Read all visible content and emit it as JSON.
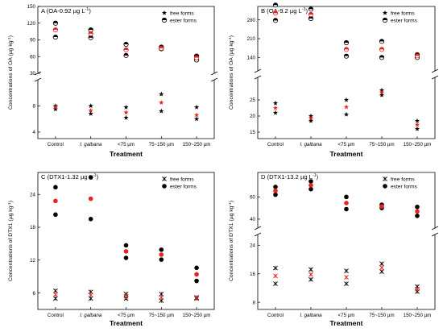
{
  "chart_data": [
    {
      "type": "scatter",
      "panel_letter": "A",
      "title": "A (OA-0.92 µg L⁻¹)",
      "ylabel": "Concentrations of OA (µg kg⁻¹)",
      "xlabel": "Treatment",
      "categories": [
        "Control",
        "I. galbana",
        "<75 µm",
        "75~150 µm",
        "150~250 µm"
      ],
      "broken_axis": true,
      "upper_segment": {
        "ylim": [
          30,
          150
        ],
        "ticks": [
          "30",
          "60",
          "90",
          "120",
          "150"
        ]
      },
      "lower_segment": {
        "ylim": [
          3,
          12
        ],
        "ticks": [
          "4",
          "8"
        ]
      },
      "legend": {
        "placement": "top-right",
        "entries": [
          "free forms",
          "ester forms"
        ]
      },
      "series": [
        {
          "name": "free forms",
          "marker": "star",
          "replicates": [
            [
              7.5,
              6.8,
              6.2,
              7.2,
              6.0
            ],
            [
              8.0,
              8.0,
              7.8,
              9.8,
              7.8
            ]
          ],
          "mean": [
            7.8,
            7.3,
            7.0,
            8.5,
            6.6
          ]
        },
        {
          "name": "ester forms",
          "marker": "half-circle",
          "replicates": [
            [
              95,
              94,
              62,
              74,
              54
            ],
            [
              120,
              108,
              82,
              77,
              61
            ]
          ],
          "mean": [
            108,
            101,
            72,
            75,
            58
          ]
        }
      ]
    },
    {
      "type": "scatter",
      "panel_letter": "B",
      "title": "B (OA-9.2 µg L⁻¹)",
      "ylabel": "Concentrations of OA (µg kg⁻¹)",
      "xlabel": "Treatment",
      "categories": [
        "Control",
        "I. galbana",
        "<75 µm",
        "75~150 µm",
        "150~250 µm"
      ],
      "broken_axis": true,
      "upper_segment": {
        "ylim": [
          90,
          330
        ],
        "ticks": [
          "140",
          "210",
          "280"
        ]
      },
      "lower_segment": {
        "ylim": [
          13,
          32
        ],
        "ticks": [
          "15",
          "20",
          "25"
        ]
      },
      "legend": {
        "placement": "top-right",
        "entries": [
          "free forms",
          "ester forms"
        ]
      },
      "series": [
        {
          "name": "free forms",
          "marker": "star",
          "replicates": [
            [
              21,
              18.5,
              20.5,
              26.5,
              16
            ],
            [
              24,
              20,
              25,
              28,
              18.5
            ]
          ],
          "mean": [
            22.5,
            19.3,
            22.8,
            27.3,
            17.3
          ]
        },
        {
          "name": "ester forms",
          "marker": "half-circle",
          "replicates": [
            [
              278,
              285,
              145,
              140,
              140
            ],
            [
              335,
              320,
              195,
              200,
              150
            ]
          ],
          "mean": [
            305,
            300,
            170,
            170,
            146
          ]
        }
      ]
    },
    {
      "type": "scatter",
      "panel_letter": "C",
      "title": "C (DTX1-1.32 µg L⁻¹)",
      "ylabel": "Concentrations of DTX1 (µg kg⁻¹)",
      "xlabel": "Treatment",
      "categories": [
        "Control",
        "I. galbana",
        "<75 µm",
        "75~150 µm",
        "150~250 µm"
      ],
      "broken_axis": false,
      "ylim": [
        3,
        28
      ],
      "yticks": [
        "6",
        "12",
        "18",
        "24"
      ],
      "legend": {
        "placement": "top-right",
        "entries": [
          "free forms",
          "ester forms"
        ]
      },
      "series": [
        {
          "name": "free forms",
          "marker": "x-star",
          "replicates": [
            [
              5.0,
              5.0,
              5.0,
              4.6,
              5.0
            ],
            [
              6.4,
              6.2,
              5.8,
              5.8,
              5.2
            ]
          ],
          "mean": [
            5.7,
            5.6,
            5.4,
            5.2,
            5.1
          ]
        },
        {
          "name": "ester forms",
          "marker": "filled-circle",
          "replicates": [
            [
              20.3,
              19.5,
              12.4,
              12.1,
              8.2
            ],
            [
              25.3,
              27.1,
              14.7,
              13.9,
              10.6
            ]
          ],
          "mean": [
            22.8,
            23.2,
            13.6,
            13.0,
            9.4
          ]
        }
      ]
    },
    {
      "type": "scatter",
      "panel_letter": "D",
      "title": "D (DTX1-13.2 µg L⁻¹)",
      "ylabel": "Concentrations of DTX1 (µg kg⁻¹)",
      "xlabel": "Treatment",
      "categories": [
        "Control",
        "I. galbana",
        "<75 µm",
        "75~150 µm",
        "150~250 µm"
      ],
      "broken_axis": true,
      "upper_segment": {
        "ylim": [
          32,
          82
        ],
        "ticks": [
          "40",
          "60"
        ]
      },
      "lower_segment": {
        "ylim": [
          6,
          27
        ],
        "ticks": [
          "8",
          "16",
          "24"
        ]
      },
      "legend": {
        "placement": "top-right",
        "entries": [
          "free forms",
          "ester forms"
        ]
      },
      "series": [
        {
          "name": "free forms",
          "marker": "x-star",
          "replicates": [
            [
              13.2,
              14.4,
              13.2,
              16.6,
              11.0
            ],
            [
              17.6,
              17.2,
              16.8,
              18.8,
              12.4
            ]
          ],
          "mean": [
            15.4,
            15.8,
            15.0,
            17.7,
            11.7
          ]
        },
        {
          "name": "ester forms",
          "marker": "filled-circle",
          "replicates": [
            [
              62,
              67,
              49,
              50,
              43
            ],
            [
              69,
              74,
              60,
              53,
              51
            ]
          ],
          "mean": [
            65.5,
            70.5,
            54.5,
            51.5,
            47
          ]
        }
      ]
    }
  ],
  "colors": {
    "mean_marker": "#e8231e",
    "marker": "#000000",
    "axis": "#000000"
  }
}
